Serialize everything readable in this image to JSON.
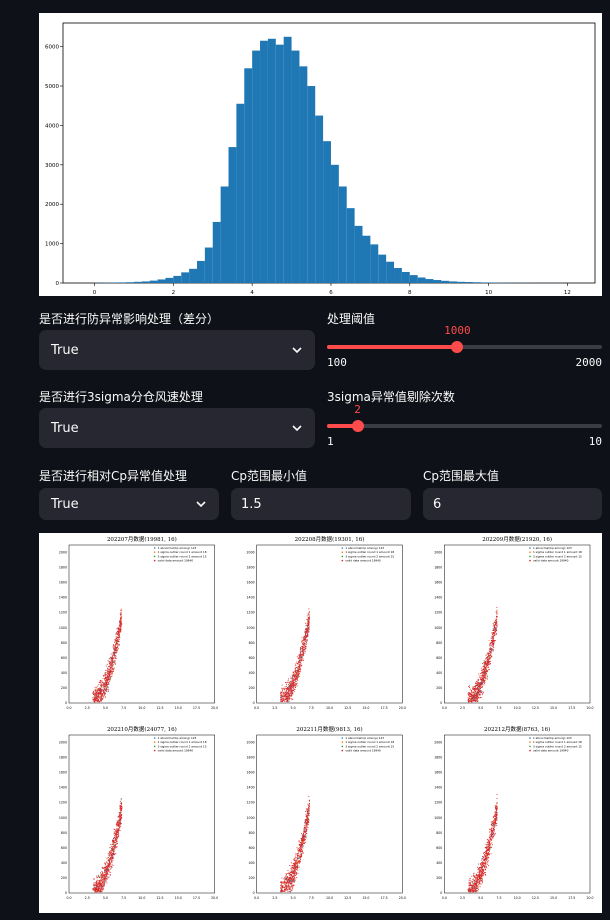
{
  "histogram": {
    "chart_data": {
      "type": "bar",
      "x_ticks": [
        "0",
        "2",
        "4",
        "6",
        "8",
        "10",
        "12"
      ],
      "y_ticks": [
        "0",
        "1000",
        "2000",
        "3000",
        "4000",
        "5000",
        "6000"
      ],
      "xlim": [
        -0.8,
        12.7
      ],
      "ylim": [
        0,
        6600
      ],
      "bin_width": 0.2,
      "bins_start": 0.0,
      "values": [
        5,
        8,
        10,
        15,
        20,
        30,
        40,
        60,
        90,
        130,
        180,
        270,
        360,
        560,
        900,
        1550,
        2450,
        3450,
        4550,
        5450,
        5900,
        6150,
        6200,
        6050,
        6250,
        5900,
        5500,
        5000,
        4250,
        3600,
        3000,
        2450,
        1900,
        1450,
        1200,
        980,
        720,
        540,
        380,
        280,
        200,
        140,
        100,
        75,
        55,
        40,
        30,
        25,
        20,
        15,
        10,
        8,
        6,
        5,
        5,
        3,
        2,
        2,
        2,
        1,
        1,
        1,
        1,
        1,
        1
      ]
    }
  },
  "controls": {
    "diff_label": "是否进行防异常影响处理（差分）",
    "diff_value": "True",
    "threshold_label": "处理阈值",
    "threshold_value": "1000",
    "threshold_min": "100",
    "threshold_max": "2000",
    "threshold_fraction": 0.474,
    "sigma_label": "是否进行3sigma分仓风速处理",
    "sigma_value": "True",
    "sigma_count_label": "3sigma异常值剔除次数",
    "sigma_count_value": "2",
    "sigma_count_min": "1",
    "sigma_count_max": "10",
    "sigma_count_fraction": 0.111,
    "cp_label": "是否进行相对Cp异常值处理",
    "cp_value": "True",
    "cp_min_label": "Cp范围最小值",
    "cp_min_value": "1.5",
    "cp_max_label": "Cp范围最大值",
    "cp_max_value": "6"
  },
  "scatter": {
    "x_ticks": [
      "0.0",
      "2.5",
      "5.0",
      "7.5",
      "10.0",
      "12.5",
      "15.0",
      "17.5",
      "20.0"
    ],
    "y_ticks": [
      "0",
      "200",
      "400",
      "600",
      "800",
      "1000",
      "1200",
      "1400",
      "1600",
      "1800",
      "2000"
    ],
    "xlim": [
      0,
      20
    ],
    "ylim": [
      0,
      2100
    ],
    "legend": [
      "1 abnormal(Cp among) 123",
      "1 sigma outlier round 1 amount 18",
      "3 sigma outlier round 2 amount 15",
      "valid data amount 19940"
    ],
    "colors": {
      "abnormal": "#1f77b4",
      "round1": "#ff7f0e",
      "round2": "#2ca02c",
      "valid": "#d62728"
    },
    "panels": [
      {
        "title": "202207月数据(19981, 16)"
      },
      {
        "title": "202208月数据(19301, 16)"
      },
      {
        "title": "202209月数据(21920, 16)"
      },
      {
        "title": "202210月数据(24077, 16)"
      },
      {
        "title": "202211月数据(9813, 16)"
      },
      {
        "title": "202212月数据(8763, 16)"
      }
    ]
  }
}
